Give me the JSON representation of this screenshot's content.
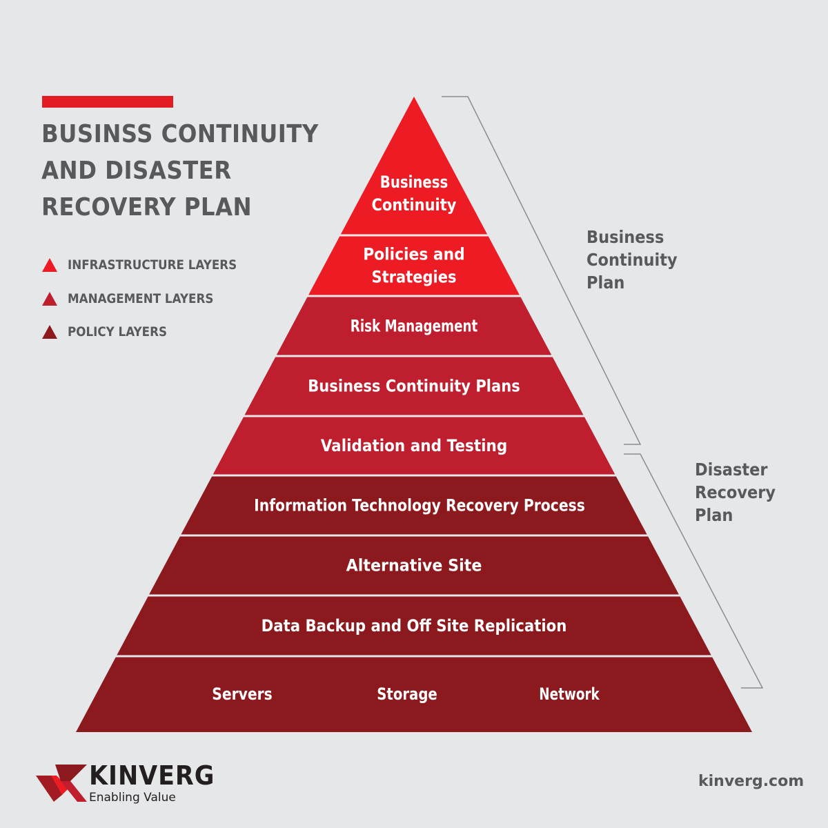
{
  "title": {
    "lines": [
      "BUSINSS CONTINUITY",
      "AND DISASTER",
      "RECOVERY PLAN"
    ]
  },
  "legend": [
    {
      "label": "INFRASTRUCTURE LAYERS",
      "color": "#ed1c24"
    },
    {
      "label": "MANAGEMENT LAYERS",
      "color": "#be1e2d"
    },
    {
      "label": "POLICY LAYERS",
      "color": "#8b191e"
    }
  ],
  "pyramid": {
    "layers": [
      {
        "lines": [
          "Business",
          "Continuity"
        ],
        "color": "#ed1c24"
      },
      {
        "lines": [
          "Policies and",
          "Strategies"
        ],
        "color": "#ed1c24"
      },
      {
        "lines": [
          "Risk Management"
        ],
        "color": "#be1e2d"
      },
      {
        "lines": [
          "Business Continuity Plans"
        ],
        "color": "#be1e2d"
      },
      {
        "lines": [
          "Validation and Testing"
        ],
        "color": "#be1e2d"
      },
      {
        "lines": [
          "Information Technology Recovery Process"
        ],
        "color": "#8b191e"
      },
      {
        "lines": [
          "Alternative Site"
        ],
        "color": "#8b191e"
      },
      {
        "lines": [
          "Data Backup and Off Site Replication"
        ],
        "color": "#8b191e"
      },
      {
        "lines": [
          "Servers",
          "Storage",
          "Network"
        ],
        "color": "#8b191e",
        "horizontal": true
      }
    ]
  },
  "brackets": {
    "business_continuity_plan": [
      "Business",
      "Continuity",
      "Plan"
    ],
    "disaster_recovery_plan": [
      "Disaster",
      "Recovery",
      "Plan"
    ]
  },
  "footer": {
    "brand_name": "KINVERG",
    "tagline": "Enabling Value",
    "url": "kinverg.com",
    "logo_icon": "chevron-arrow-icon"
  },
  "colors": {
    "accent": "#e31b23",
    "text_gray": "#58595b",
    "background": "#e6e7e9"
  }
}
